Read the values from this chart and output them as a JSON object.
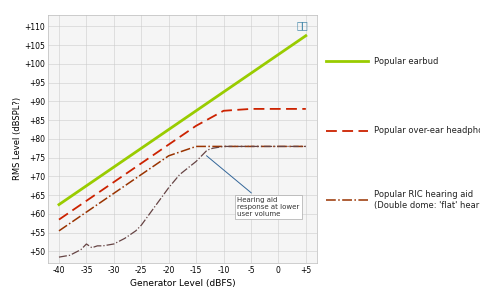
{
  "xlabel": "Generator Level (dBFS)",
  "ylabel": "RMS Level (dBSPL?)",
  "xlim": [
    -42,
    7
  ],
  "ylim": [
    47,
    113
  ],
  "xticks": [
    -40,
    -35,
    -30,
    -25,
    -20,
    -15,
    -10,
    -5,
    0,
    5
  ],
  "yticks": [
    50,
    55,
    60,
    65,
    70,
    75,
    80,
    85,
    90,
    95,
    100,
    105,
    110
  ],
  "ytick_labels": [
    "+50",
    "+55",
    "+60",
    "+65",
    "+70",
    "+75",
    "+80",
    "+85",
    "+90",
    "+95",
    "+100",
    "+105",
    "+110"
  ],
  "xtick_labels": [
    "-40",
    "-35",
    "-30",
    "-25",
    "-20",
    "-15",
    "-10",
    "-5",
    "0",
    "+5"
  ],
  "bg_color": "#ffffff",
  "plot_bg_color": "#f5f5f5",
  "grid_color": "#cccccc",
  "annotation_text": "Hearing aid\nresponse at lower\nuser volume",
  "earbud_x": [
    -40,
    -35,
    -30,
    -25,
    -20,
    -15,
    -10,
    -5,
    0,
    5
  ],
  "earbud_y": [
    62.5,
    67.5,
    72.5,
    77.5,
    82.5,
    87.5,
    92.5,
    97.5,
    102.5,
    107.5
  ],
  "headphone_x": [
    -40,
    -35,
    -30,
    -25,
    -20,
    -15,
    -10,
    -5,
    0,
    5
  ],
  "headphone_y": [
    58.5,
    63.5,
    68.5,
    73.5,
    78.5,
    83.5,
    87.5,
    88.0,
    88.0,
    88.0
  ],
  "ric_main_x": [
    -40,
    -35,
    -30,
    -25,
    -20,
    -15,
    -10,
    -5,
    0,
    5
  ],
  "ric_main_y": [
    55.5,
    60.5,
    65.5,
    70.5,
    75.5,
    78.0,
    78.0,
    78.0,
    78.0,
    78.0
  ],
  "ric_lower_x": [
    -40,
    -38,
    -36,
    -35,
    -34,
    -33,
    -32,
    -30,
    -28,
    -26,
    -25,
    -23,
    -22,
    -20,
    -18,
    -15,
    -13,
    -12,
    -10,
    -5,
    0,
    5
  ],
  "ric_lower_y": [
    48.5,
    49.0,
    50.5,
    52.0,
    51.0,
    51.5,
    51.5,
    52.0,
    53.5,
    55.5,
    57.0,
    61.0,
    63.0,
    67.0,
    70.5,
    74.0,
    77.0,
    77.5,
    78.0,
    78.0,
    78.0,
    78.0
  ],
  "earbud_color": "#99cc00",
  "headphone_color": "#cc2200",
  "ric_color": "#993300",
  "ric_lower_color": "#664444",
  "legend_label1": "Popular earbud",
  "legend_label2": "Popular over-ear headphone",
  "legend_label3": "Popular RIC hearing aid\n(Double dome: 'flat' hearing profile)"
}
